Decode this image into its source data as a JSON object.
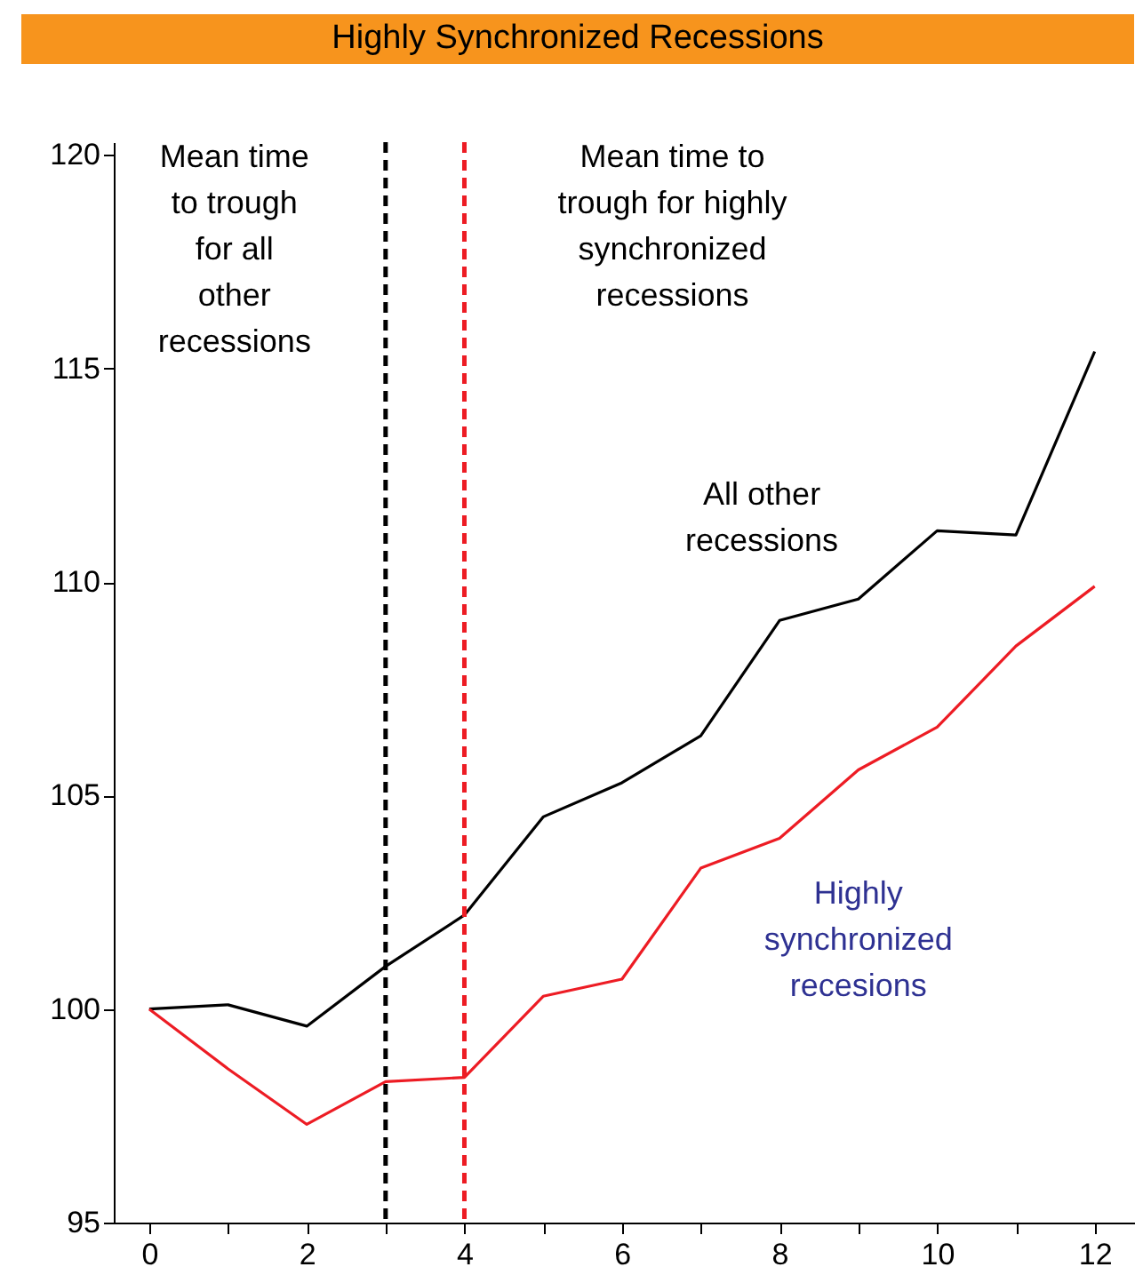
{
  "chart_data": {
    "type": "line",
    "title": "Highly Synchronized Recessions",
    "x": [
      0,
      1,
      2,
      3,
      4,
      5,
      6,
      7,
      8,
      9,
      10,
      11,
      12
    ],
    "series": [
      {
        "name": "All other recessions",
        "color": "#000000",
        "values": [
          100,
          100.1,
          99.6,
          101,
          102.2,
          104.5,
          105.3,
          106.4,
          109.1,
          109.6,
          111.2,
          111.1,
          115.4
        ]
      },
      {
        "name": "Highly synchronized recesions",
        "color": "#ed1c24",
        "values": [
          100,
          98.6,
          97.3,
          98.3,
          98.4,
          100.3,
          100.7,
          103.3,
          104.0,
          105.6,
          106.6,
          108.5,
          109.9
        ]
      }
    ],
    "xlim": [
      -0.45,
      12.5
    ],
    "xticks": [
      0,
      {
        "value": 1,
        "label": null
      },
      2,
      {
        "value": 3,
        "label": null
      },
      4,
      {
        "value": 5,
        "label": null
      },
      6,
      {
        "value": 7,
        "label": null
      },
      8,
      {
        "value": 9,
        "label": null
      },
      10,
      {
        "value": 11,
        "label": null
      },
      12
    ],
    "ylim": [
      95,
      120.3
    ],
    "yticks": [
      95,
      100,
      105,
      110,
      115,
      120
    ],
    "ref_lines": [
      {
        "axis": "x",
        "value": 3,
        "label": "Mean time to trough for all other recessions",
        "color": "#000000",
        "line_style": "dashed"
      },
      {
        "axis": "x",
        "value": 4,
        "label": "Mean time to trough for highly synchronized recessions",
        "color": "#ed1c24",
        "line_style": "dashed"
      }
    ],
    "grid": false,
    "legend": false,
    "marker": "none",
    "line_style": "solid"
  }
}
